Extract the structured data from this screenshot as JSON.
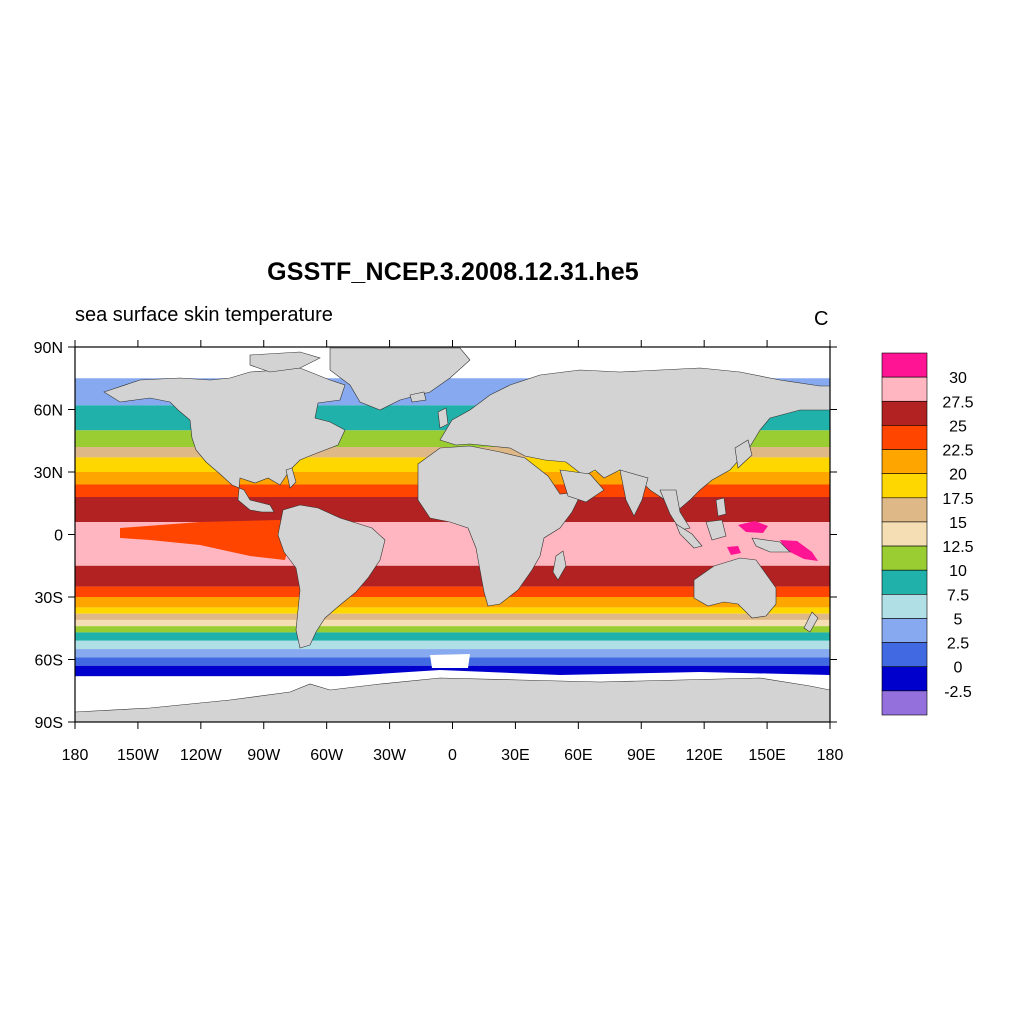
{
  "title": "GSSTF_NCEP.3.2008.12.31.he5",
  "left_subtitle": "sea surface skin temperature",
  "right_subtitle": "C",
  "map": {
    "projection": "cylindrical-equidistant",
    "lon_range": [
      -180,
      180
    ],
    "lat_range": [
      -90,
      90
    ],
    "land_color": "#d3d3d3",
    "missing_color": "#ffffff",
    "lon_ticks": [
      {
        "value": -180,
        "label": "180"
      },
      {
        "value": -150,
        "label": "150W"
      },
      {
        "value": -120,
        "label": "120W"
      },
      {
        "value": -90,
        "label": "90W"
      },
      {
        "value": -60,
        "label": "60W"
      },
      {
        "value": -30,
        "label": "30W"
      },
      {
        "value": 0,
        "label": "0"
      },
      {
        "value": 30,
        "label": "30E"
      },
      {
        "value": 60,
        "label": "60E"
      },
      {
        "value": 90,
        "label": "90E"
      },
      {
        "value": 120,
        "label": "120E"
      },
      {
        "value": 150,
        "label": "150E"
      },
      {
        "value": 180,
        "label": "180"
      }
    ],
    "lat_ticks": [
      {
        "value": 90,
        "label": "90N"
      },
      {
        "value": 60,
        "label": "60N"
      },
      {
        "value": 30,
        "label": "30N"
      },
      {
        "value": 0,
        "label": "0"
      },
      {
        "value": -30,
        "label": "30S"
      },
      {
        "value": -60,
        "label": "60S"
      },
      {
        "value": -90,
        "label": "90S"
      }
    ]
  },
  "colorbar": {
    "levels": [
      "30",
      "27.5",
      "25",
      "22.5",
      "20",
      "17.5",
      "15",
      "12.5",
      "10",
      "7.5",
      "5",
      "2.5",
      "0",
      "-2.5"
    ],
    "colors": [
      "#ff1493",
      "#ffb6c1",
      "#b22222",
      "#ff4500",
      "#ffa500",
      "#ffd700",
      "#deb887",
      "#f5deb3",
      "#9acd32",
      "#20b2aa",
      "#b0e0e6",
      "#87a9f0",
      "#4169e1",
      "#0000cd",
      "#9370db"
    ]
  },
  "chart_data": {
    "type": "heatmap",
    "variable": "sea surface skin temperature",
    "units": "C",
    "x_range": [
      -180,
      180
    ],
    "y_range": [
      -90,
      90
    ],
    "zonal_bands": [
      {
        "lat": [
          62,
          75
        ],
        "class": "2.5-5"
      },
      {
        "lat": [
          50,
          62
        ],
        "class": "7.5-10"
      },
      {
        "lat": [
          42,
          50
        ],
        "class": "10-12.5"
      },
      {
        "lat": [
          37,
          42
        ],
        "class": "15-17.5"
      },
      {
        "lat": [
          30,
          37
        ],
        "class": "17.5-20"
      },
      {
        "lat": [
          24,
          30
        ],
        "class": "20-22.5"
      },
      {
        "lat": [
          18,
          24
        ],
        "class": "22.5-25"
      },
      {
        "lat": [
          6,
          18
        ],
        "class": "25-27.5"
      },
      {
        "lat": [
          -15,
          6
        ],
        "class": "27.5-30"
      },
      {
        "lat": [
          -25,
          -15
        ],
        "class": "25-27.5"
      },
      {
        "lat": [
          -30,
          -25
        ],
        "class": "22.5-25"
      },
      {
        "lat": [
          -35,
          -30
        ],
        "class": "20-22.5"
      },
      {
        "lat": [
          -38,
          -35
        ],
        "class": "17.5-20"
      },
      {
        "lat": [
          -41,
          -38
        ],
        "class": "15-17.5"
      },
      {
        "lat": [
          -44,
          -41
        ],
        "class": "12.5-15"
      },
      {
        "lat": [
          -47,
          -44
        ],
        "class": "10-12.5"
      },
      {
        "lat": [
          -51,
          -47
        ],
        "class": "7.5-10"
      },
      {
        "lat": [
          -55,
          -51
        ],
        "class": "5-7.5"
      },
      {
        "lat": [
          -59,
          -55
        ],
        "class": "2.5-5"
      },
      {
        "lat": [
          -63,
          -59
        ],
        "class": "0-2.5"
      },
      {
        "lat": [
          -68,
          -63
        ],
        "class": "-2.5-0"
      }
    ],
    "warm_pool_max": {
      "region": "western tropical Pacific",
      "class": ">30"
    }
  }
}
